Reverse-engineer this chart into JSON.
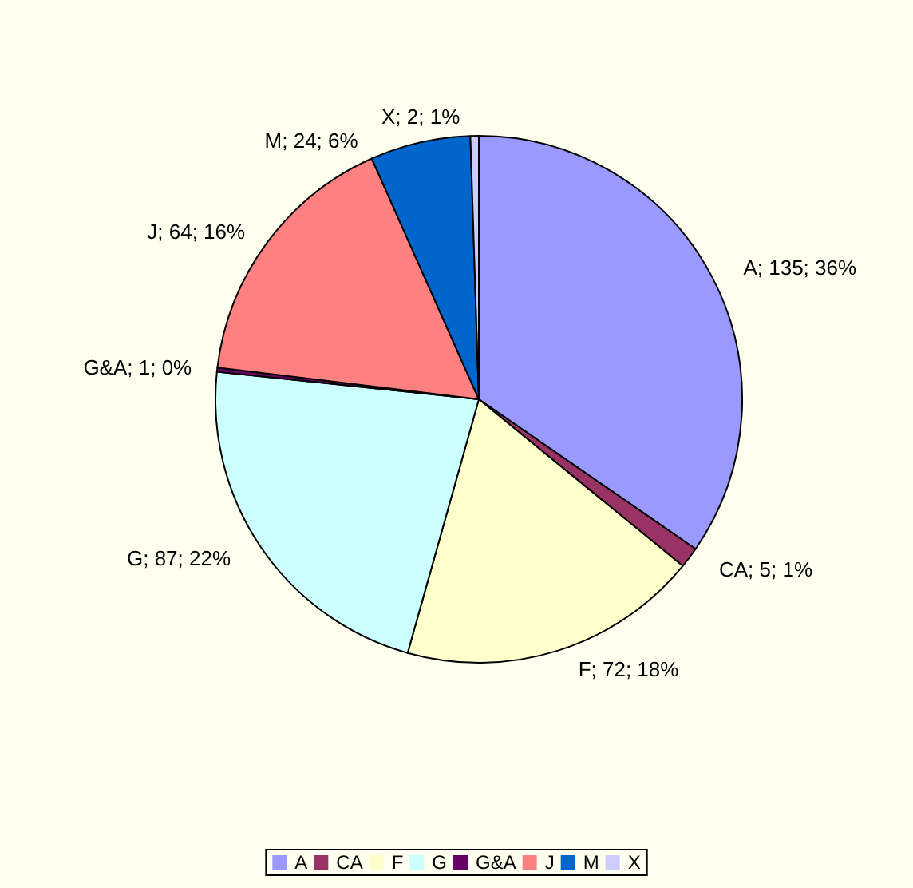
{
  "chart_data": {
    "type": "pie",
    "categories": [
      "A",
      "CA",
      "F",
      "G",
      "G&A",
      "J",
      "M",
      "X"
    ],
    "values": [
      135,
      5,
      72,
      87,
      1,
      64,
      24,
      2
    ],
    "colors": [
      "#9999ff",
      "#993366",
      "#ffffcc",
      "#ccffff",
      "#660066",
      "#ff8080",
      "#0066cc",
      "#ccccff"
    ],
    "value_labels": [
      "A; 135; 36%",
      "CA; 5; 1%",
      "F; 72; 18%",
      "G; 87; 22%",
      "G&A; 1; 0%",
      "J; 64; 16%",
      "M; 24; 6%",
      "X; 2; 1%"
    ],
    "legend": "bottom"
  }
}
